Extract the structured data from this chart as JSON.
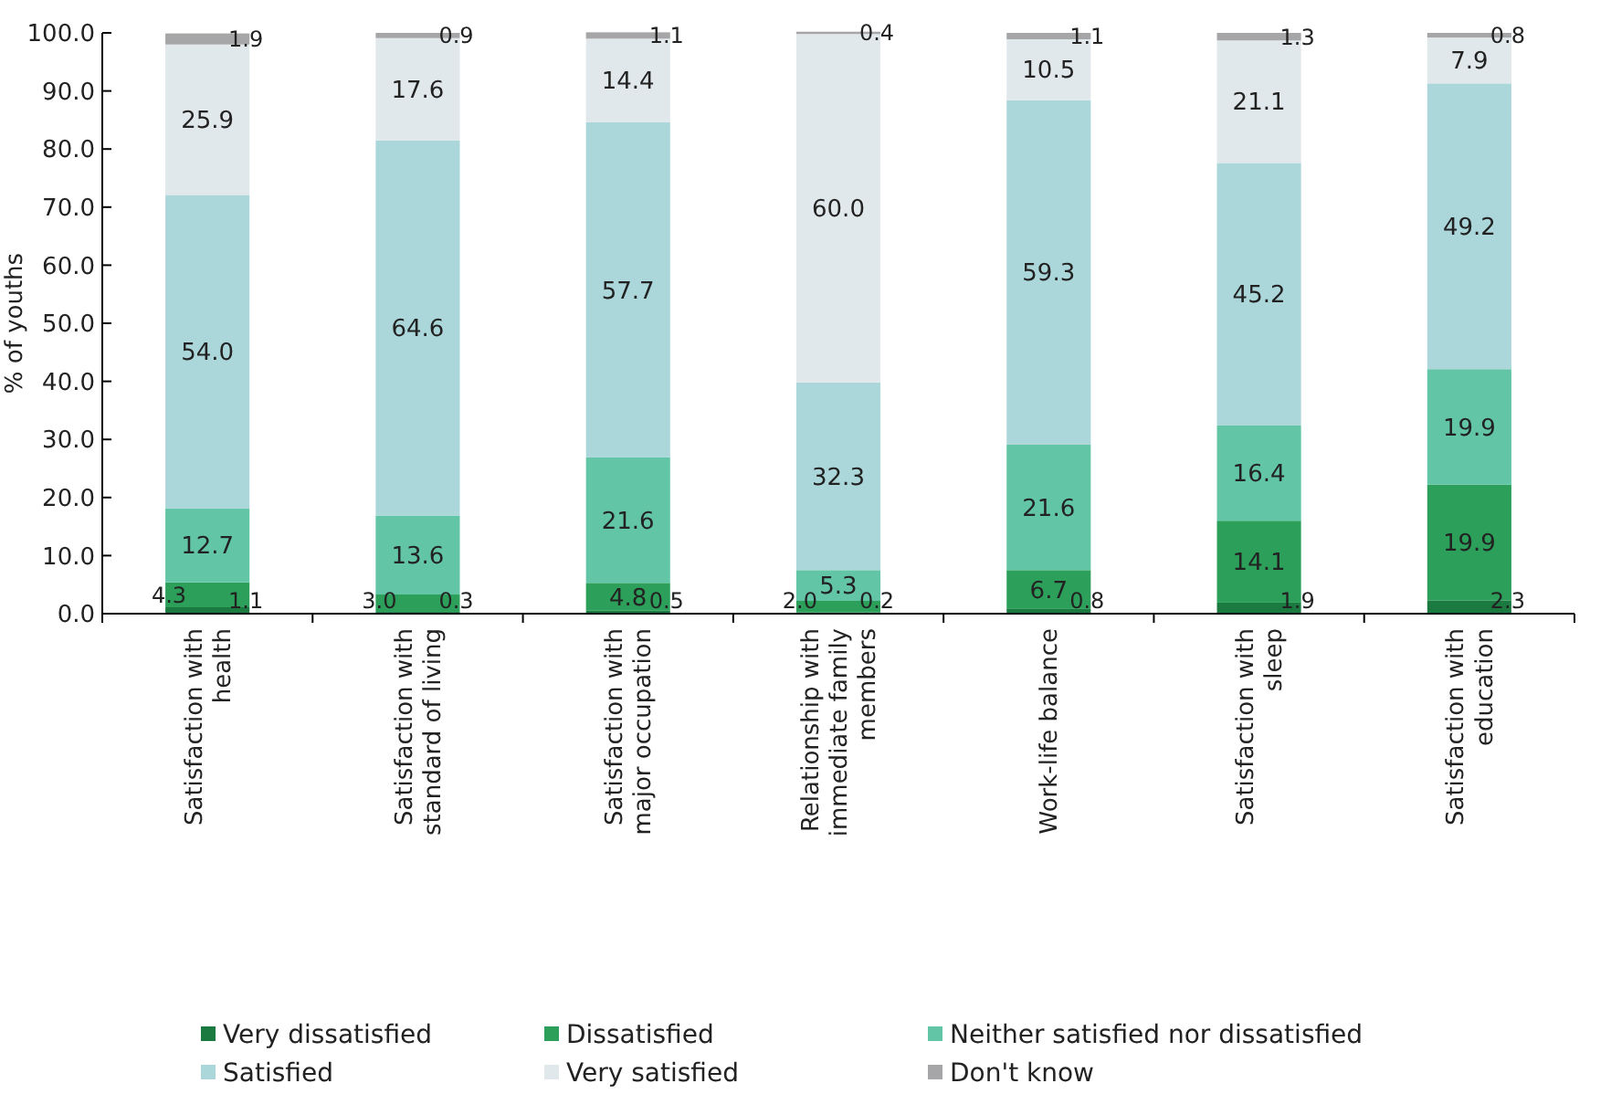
{
  "chart_data": {
    "type": "bar",
    "stacked": true,
    "ylabel": "% of youths",
    "categories": [
      "Satisfaction with health",
      "Satisfaction with standard of living",
      "Satisfaction with major occupation",
      "Relationship with immediate family members",
      "Work-life balance",
      "Satisfaction with sleep",
      "Satisfaction with education"
    ],
    "series": [
      {
        "name": "Very dissatisfied",
        "color": "#1a7a40",
        "values": [
          1.1,
          0.3,
          0.5,
          0.2,
          0.8,
          1.9,
          2.3
        ],
        "value_labels": [
          "1.1",
          "0.3",
          "0.5",
          "0.2",
          "0.8",
          "1.9",
          "2.3"
        ]
      },
      {
        "name": "Dissatisfied",
        "color": "#2ca05a",
        "values": [
          4.3,
          3.0,
          4.8,
          2.0,
          6.7,
          14.1,
          19.9
        ],
        "value_labels": [
          "4.3",
          "3.0",
          "4.8",
          "2.0",
          "6.7",
          "14.1",
          "19.9"
        ]
      },
      {
        "name": "Neither satisfied nor dissatisfied",
        "color": "#62c5a5",
        "values": [
          12.7,
          13.6,
          21.6,
          5.3,
          21.6,
          16.4,
          19.9
        ],
        "value_labels": [
          "12.7",
          "13.6",
          "21.6",
          "5.3",
          "21.6",
          "16.4",
          "19.9"
        ]
      },
      {
        "name": "Satisfied",
        "color": "#acd7da",
        "values": [
          54.0,
          64.6,
          57.7,
          32.3,
          59.3,
          45.2,
          49.2
        ],
        "value_labels": [
          "54.0",
          "64.6",
          "57.7",
          "32.3",
          "59.3",
          "45.2",
          "49.2"
        ]
      },
      {
        "name": "Very satisfied",
        "color": "#e1e8eb",
        "values": [
          25.9,
          17.6,
          14.4,
          60.0,
          10.5,
          21.1,
          7.9
        ],
        "value_labels": [
          "25.9",
          "17.6",
          "14.4",
          "60.0",
          "10.5",
          "21.1",
          "7.9"
        ]
      },
      {
        "name": "Don't know",
        "color": "#a6a6a8",
        "values": [
          1.9,
          0.9,
          1.1,
          0.4,
          1.1,
          1.3,
          0.8
        ],
        "value_labels": [
          "1.9",
          "0.9",
          "1.1",
          "0.4",
          "1.1",
          "1.3",
          "0.8"
        ]
      }
    ],
    "ylim": [
      0,
      100
    ],
    "yticks": [
      {
        "value": 0,
        "label": "0.0"
      },
      {
        "value": 10,
        "label": "10.0"
      },
      {
        "value": 20,
        "label": "20.0"
      },
      {
        "value": 30,
        "label": "30.0"
      },
      {
        "value": 40,
        "label": "40.0"
      },
      {
        "value": 50,
        "label": "50.0"
      },
      {
        "value": 60,
        "label": "60.0"
      },
      {
        "value": 70,
        "label": "70.0"
      },
      {
        "value": 80,
        "label": "80.0"
      },
      {
        "value": 90,
        "label": "90.0"
      },
      {
        "value": 100,
        "label": "100.0"
      }
    ],
    "grid": false,
    "legend": "bottom"
  }
}
